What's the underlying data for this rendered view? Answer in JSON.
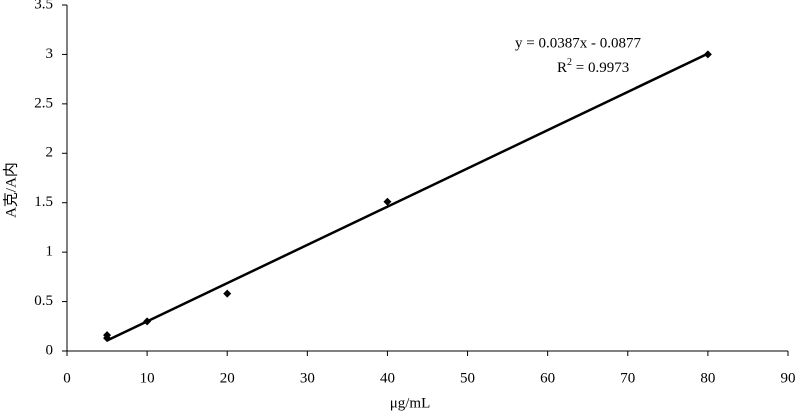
{
  "chart_data": {
    "type": "scatter",
    "x_label": "μg/mL",
    "y_label": "A克/A内",
    "x": [
      5,
      5,
      10,
      20,
      40,
      80
    ],
    "values": [
      0.16,
      0.13,
      0.3,
      0.58,
      1.51,
      3.0
    ],
    "color": "#000000",
    "trendline": {
      "x": [
        5,
        80
      ],
      "values": [
        0.106,
        3.008
      ],
      "color": "#000000"
    },
    "equation": "y = 0.0387x - 0.0877",
    "r2_base": "R",
    "r2_sup": "2",
    "r2_rest": " = 0.9973",
    "xlim": [
      0,
      90
    ],
    "xticks": [
      0,
      10,
      20,
      30,
      40,
      50,
      60,
      70,
      80,
      90
    ],
    "ylim": [
      0,
      3.5
    ],
    "yticks": [
      0,
      0.5,
      1,
      1.5,
      2,
      2.5,
      3,
      3.5
    ],
    "grid": false
  }
}
